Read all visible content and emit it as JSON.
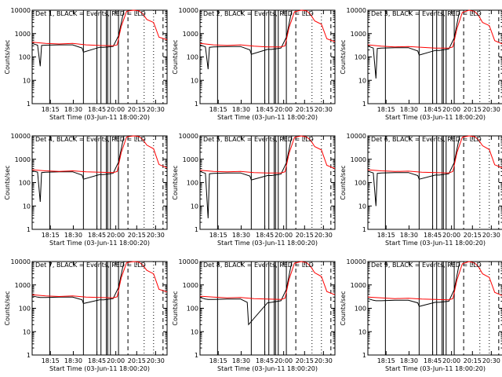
{
  "figure": {
    "background": "#ffffff",
    "axis_color": "#000000",
    "events_color": "#000000",
    "lld_color": "#ff0000"
  },
  "chart_data": [
    {
      "type": "line",
      "title": "Det 1, BLACK = Events, RED = LLD",
      "xlabel": "Start Time (03-Jun-11 18:00:20)",
      "ylabel": "Counts/sec",
      "y_scale": "log",
      "ylim": [
        1,
        10000
      ],
      "x_ticks": [
        "18:15",
        "18:30",
        "18:45",
        "20:00",
        "20:15",
        "20:30"
      ],
      "y_ticks": [
        "1",
        "10",
        "100",
        "1000",
        "10000"
      ],
      "grid": false,
      "series": [
        {
          "name": "Events",
          "color": "#000000",
          "x": [
            0,
            0.04,
            0.06,
            0.07,
            0.1,
            0.2,
            0.3,
            0.37,
            0.38,
            0.5,
            0.53,
            0.6,
            0.64,
            0.68
          ],
          "y": [
            380,
            320,
            40,
            310,
            320,
            330,
            330,
            240,
            160,
            260,
            260,
            280,
            800,
            10000
          ]
        },
        {
          "name": "LLD",
          "color": "#ff0000",
          "x": [
            0,
            0.1,
            0.2,
            0.3,
            0.4,
            0.5,
            0.6,
            0.63,
            0.66,
            0.7,
            0.75,
            0.79,
            0.82,
            0.85,
            0.9,
            0.94,
            1
          ],
          "y": [
            430,
            380,
            360,
            380,
            330,
            310,
            300,
            330,
            2000,
            9000,
            10000,
            9500,
            7000,
            4000,
            3000,
            700,
            550
          ]
        }
      ]
    },
    {
      "type": "line",
      "title": "Det 2, BLACK = Events, RED = LLD",
      "xlabel": "Start Time (03-Jun-11 18:00:20)",
      "ylabel": "Counts/sec",
      "y_scale": "log",
      "ylim": [
        1,
        10000
      ],
      "x_ticks": [
        "18:15",
        "18:30",
        "18:45",
        "20:00",
        "20:15",
        "20:30"
      ],
      "y_ticks": [
        "1",
        "10",
        "100",
        "1000",
        "10000"
      ],
      "grid": false,
      "series": [
        {
          "name": "Events",
          "color": "#000000",
          "x": [
            0,
            0.04,
            0.06,
            0.07,
            0.1,
            0.2,
            0.3,
            0.37,
            0.38,
            0.5,
            0.53,
            0.6,
            0.64,
            0.68
          ],
          "y": [
            330,
            270,
            30,
            260,
            270,
            280,
            280,
            200,
            130,
            210,
            210,
            240,
            700,
            10000
          ]
        },
        {
          "name": "LLD",
          "color": "#ff0000",
          "x": [
            0,
            0.1,
            0.2,
            0.3,
            0.4,
            0.5,
            0.6,
            0.63,
            0.66,
            0.7,
            0.75,
            0.79,
            0.82,
            0.85,
            0.9,
            0.94,
            1
          ],
          "y": [
            380,
            330,
            310,
            330,
            290,
            270,
            270,
            300,
            1800,
            8500,
            10000,
            9500,
            6500,
            3500,
            2500,
            600,
            450
          ]
        }
      ]
    },
    {
      "type": "line",
      "title": "Det 3, BLACK = Events, RED = LLD",
      "xlabel": "Start Time (03-Jun-11 18:00:20)",
      "ylabel": "Counts/sec",
      "y_scale": "log",
      "ylim": [
        1,
        10000
      ],
      "x_ticks": [
        "18:15",
        "18:30",
        "18:45",
        "20:00",
        "20:15",
        "20:30"
      ],
      "y_ticks": [
        "1",
        "10",
        "100",
        "1000",
        "10000"
      ],
      "grid": false,
      "series": [
        {
          "name": "Events",
          "color": "#000000",
          "x": [
            0,
            0.04,
            0.06,
            0.07,
            0.1,
            0.2,
            0.3,
            0.37,
            0.38,
            0.5,
            0.53,
            0.6,
            0.64,
            0.68
          ],
          "y": [
            290,
            240,
            12,
            230,
            240,
            250,
            250,
            180,
            120,
            190,
            190,
            220,
            650,
            10000
          ]
        },
        {
          "name": "LLD",
          "color": "#ff0000",
          "x": [
            0,
            0.1,
            0.2,
            0.3,
            0.4,
            0.5,
            0.6,
            0.63,
            0.66,
            0.7,
            0.75,
            0.79,
            0.82,
            0.85,
            0.9,
            0.94,
            1
          ],
          "y": [
            330,
            290,
            270,
            280,
            260,
            240,
            240,
            270,
            1600,
            8000,
            10000,
            9000,
            6000,
            3000,
            2200,
            500,
            350
          ]
        }
      ]
    },
    {
      "type": "line",
      "title": "Det 4, BLACK = Events, RED = LLD",
      "xlabel": "Start Time (03-Jun-11 18:00:20)",
      "ylabel": "Counts/sec",
      "y_scale": "log",
      "ylim": [
        1,
        10000
      ],
      "x_ticks": [
        "18:15",
        "18:30",
        "18:45",
        "20:00",
        "20:15",
        "20:30"
      ],
      "y_ticks": [
        "1",
        "10",
        "100",
        "1000",
        "10000"
      ],
      "grid": false,
      "series": [
        {
          "name": "Events",
          "color": "#000000",
          "x": [
            0,
            0.04,
            0.06,
            0.07,
            0.1,
            0.2,
            0.3,
            0.37,
            0.38,
            0.5,
            0.53,
            0.6,
            0.64,
            0.68
          ],
          "y": [
            320,
            280,
            15,
            270,
            280,
            290,
            290,
            210,
            140,
            220,
            220,
            250,
            750,
            10000
          ]
        },
        {
          "name": "LLD",
          "color": "#ff0000",
          "x": [
            0,
            0.1,
            0.2,
            0.3,
            0.4,
            0.5,
            0.6,
            0.63,
            0.66,
            0.7,
            0.75,
            0.79,
            0.82,
            0.85,
            0.9,
            0.94,
            1
          ],
          "y": [
            350,
            320,
            300,
            320,
            290,
            280,
            270,
            300,
            1900,
            9000,
            10000,
            9500,
            7000,
            4000,
            2800,
            600,
            430
          ]
        }
      ]
    },
    {
      "type": "line",
      "title": "Det 5, BLACK = Events, RED = LLD",
      "xlabel": "Start Time (03-Jun-11 18:00:20)",
      "ylabel": "Counts/sec",
      "y_scale": "log",
      "ylim": [
        1,
        10000
      ],
      "x_ticks": [
        "18:15",
        "18:30",
        "18:45",
        "20:00",
        "20:15",
        "20:30"
      ],
      "y_ticks": [
        "1",
        "10",
        "100",
        "1000",
        "10000"
      ],
      "grid": false,
      "series": [
        {
          "name": "Events",
          "color": "#000000",
          "x": [
            0,
            0.04,
            0.06,
            0.07,
            0.1,
            0.2,
            0.3,
            0.37,
            0.38,
            0.5,
            0.53,
            0.6,
            0.64,
            0.68
          ],
          "y": [
            300,
            250,
            3,
            240,
            250,
            260,
            260,
            190,
            130,
            200,
            200,
            230,
            700,
            10000
          ]
        },
        {
          "name": "LLD",
          "color": "#ff0000",
          "x": [
            0,
            0.1,
            0.2,
            0.3,
            0.4,
            0.5,
            0.6,
            0.63,
            0.66,
            0.7,
            0.75,
            0.79,
            0.82,
            0.85,
            0.9,
            0.94,
            1
          ],
          "y": [
            340,
            300,
            290,
            300,
            270,
            260,
            260,
            290,
            1800,
            8500,
            10000,
            9000,
            6500,
            3500,
            2500,
            550,
            400
          ]
        }
      ]
    },
    {
      "type": "line",
      "title": "Det 6, BLACK = Events, RED = LLD",
      "xlabel": "Start Time (03-Jun-11 18:00:20)",
      "ylabel": "Counts/sec",
      "y_scale": "log",
      "ylim": [
        1,
        10000
      ],
      "x_ticks": [
        "18:15",
        "18:30",
        "18:45",
        "20:00",
        "20:15",
        "20:30"
      ],
      "y_ticks": [
        "1",
        "10",
        "100",
        "1000",
        "10000"
      ],
      "grid": false,
      "series": [
        {
          "name": "Events",
          "color": "#000000",
          "x": [
            0,
            0.04,
            0.06,
            0.07,
            0.1,
            0.2,
            0.3,
            0.37,
            0.38,
            0.5,
            0.53,
            0.6,
            0.64,
            0.68
          ],
          "y": [
            310,
            260,
            10,
            250,
            260,
            270,
            270,
            200,
            140,
            210,
            210,
            240,
            720,
            10000
          ]
        },
        {
          "name": "LLD",
          "color": "#ff0000",
          "x": [
            0,
            0.1,
            0.2,
            0.3,
            0.4,
            0.5,
            0.6,
            0.63,
            0.66,
            0.7,
            0.75,
            0.79,
            0.82,
            0.85,
            0.9,
            0.94,
            1
          ],
          "y": [
            350,
            320,
            300,
            310,
            280,
            270,
            260,
            300,
            1900,
            8800,
            10000,
            9300,
            6800,
            3800,
            2600,
            580,
            420
          ]
        }
      ]
    },
    {
      "type": "line",
      "title": "Det 7, BLACK = Events, RED = LLD",
      "xlabel": "Start Time (03-Jun-11 18:00:20)",
      "ylabel": "Counts/sec",
      "y_scale": "log",
      "ylim": [
        1,
        10000
      ],
      "x_ticks": [
        "18:15",
        "18:30",
        "18:45",
        "20:00",
        "20:15",
        "20:30"
      ],
      "y_ticks": [
        "1",
        "10",
        "100",
        "1000",
        "10000"
      ],
      "grid": false,
      "series": [
        {
          "name": "Events",
          "color": "#000000",
          "x": [
            0,
            0.04,
            0.06,
            0.07,
            0.1,
            0.2,
            0.3,
            0.37,
            0.38,
            0.5,
            0.53,
            0.6,
            0.64,
            0.68
          ],
          "y": [
            340,
            300,
            290,
            290,
            290,
            300,
            300,
            230,
            160,
            230,
            230,
            260,
            780,
            10000
          ]
        },
        {
          "name": "LLD",
          "color": "#ff0000",
          "x": [
            0,
            0.1,
            0.2,
            0.3,
            0.4,
            0.5,
            0.6,
            0.63,
            0.66,
            0.7,
            0.75,
            0.79,
            0.82,
            0.85,
            0.9,
            0.94,
            1
          ],
          "y": [
            380,
            340,
            320,
            340,
            300,
            290,
            280,
            310,
            2000,
            9000,
            10000,
            9600,
            7000,
            4200,
            3000,
            650,
            500
          ]
        }
      ]
    },
    {
      "type": "line",
      "title": "Det 8, BLACK = Events, RED = LLD",
      "xlabel": "Start Time (03-Jun-11 18:00:20)",
      "ylabel": "Counts/sec",
      "y_scale": "log",
      "ylim": [
        1,
        10000
      ],
      "x_ticks": [
        "18:15",
        "18:30",
        "18:45",
        "20:00",
        "20:15",
        "20:30"
      ],
      "y_ticks": [
        "1",
        "10",
        "100",
        "1000",
        "10000"
      ],
      "grid": false,
      "series": [
        {
          "name": "Events",
          "color": "#000000",
          "x": [
            0,
            0.04,
            0.06,
            0.07,
            0.1,
            0.2,
            0.3,
            0.35,
            0.36,
            0.5,
            0.53,
            0.6,
            0.64,
            0.68
          ],
          "y": [
            290,
            250,
            240,
            240,
            240,
            250,
            250,
            180,
            20,
            170,
            180,
            210,
            650,
            10000
          ]
        },
        {
          "name": "LLD",
          "color": "#ff0000",
          "x": [
            0,
            0.1,
            0.2,
            0.3,
            0.4,
            0.5,
            0.6,
            0.63,
            0.66,
            0.7,
            0.75,
            0.79,
            0.82,
            0.85,
            0.9,
            0.94,
            1
          ],
          "y": [
            330,
            300,
            280,
            290,
            260,
            250,
            240,
            270,
            1700,
            8500,
            10000,
            9000,
            6200,
            3300,
            2300,
            520,
            380
          ]
        }
      ]
    },
    {
      "type": "line",
      "title": "Det 9, BLACK = Events, RED = LLD",
      "xlabel": "Start Time (03-Jun-11 18:00:20)",
      "ylabel": "Counts/sec",
      "y_scale": "log",
      "ylim": [
        1,
        10000
      ],
      "x_ticks": [
        "18:15",
        "18:30",
        "18:45",
        "20:00",
        "20:15",
        "20:30"
      ],
      "y_ticks": [
        "1",
        "10",
        "100",
        "1000",
        "10000"
      ],
      "grid": false,
      "series": [
        {
          "name": "Events",
          "color": "#000000",
          "x": [
            0,
            0.04,
            0.06,
            0.07,
            0.1,
            0.2,
            0.3,
            0.37,
            0.38,
            0.5,
            0.53,
            0.6,
            0.64,
            0.68
          ],
          "y": [
            260,
            220,
            210,
            210,
            210,
            220,
            220,
            170,
            120,
            180,
            180,
            200,
            620,
            10000
          ]
        },
        {
          "name": "LLD",
          "color": "#ff0000",
          "x": [
            0,
            0.1,
            0.2,
            0.3,
            0.4,
            0.5,
            0.6,
            0.63,
            0.66,
            0.7,
            0.75,
            0.79,
            0.82,
            0.85,
            0.9,
            0.94,
            1
          ],
          "y": [
            300,
            280,
            260,
            270,
            250,
            240,
            230,
            260,
            1600,
            8000,
            10000,
            8800,
            6000,
            3000,
            2100,
            480,
            340
          ]
        }
      ]
    }
  ]
}
